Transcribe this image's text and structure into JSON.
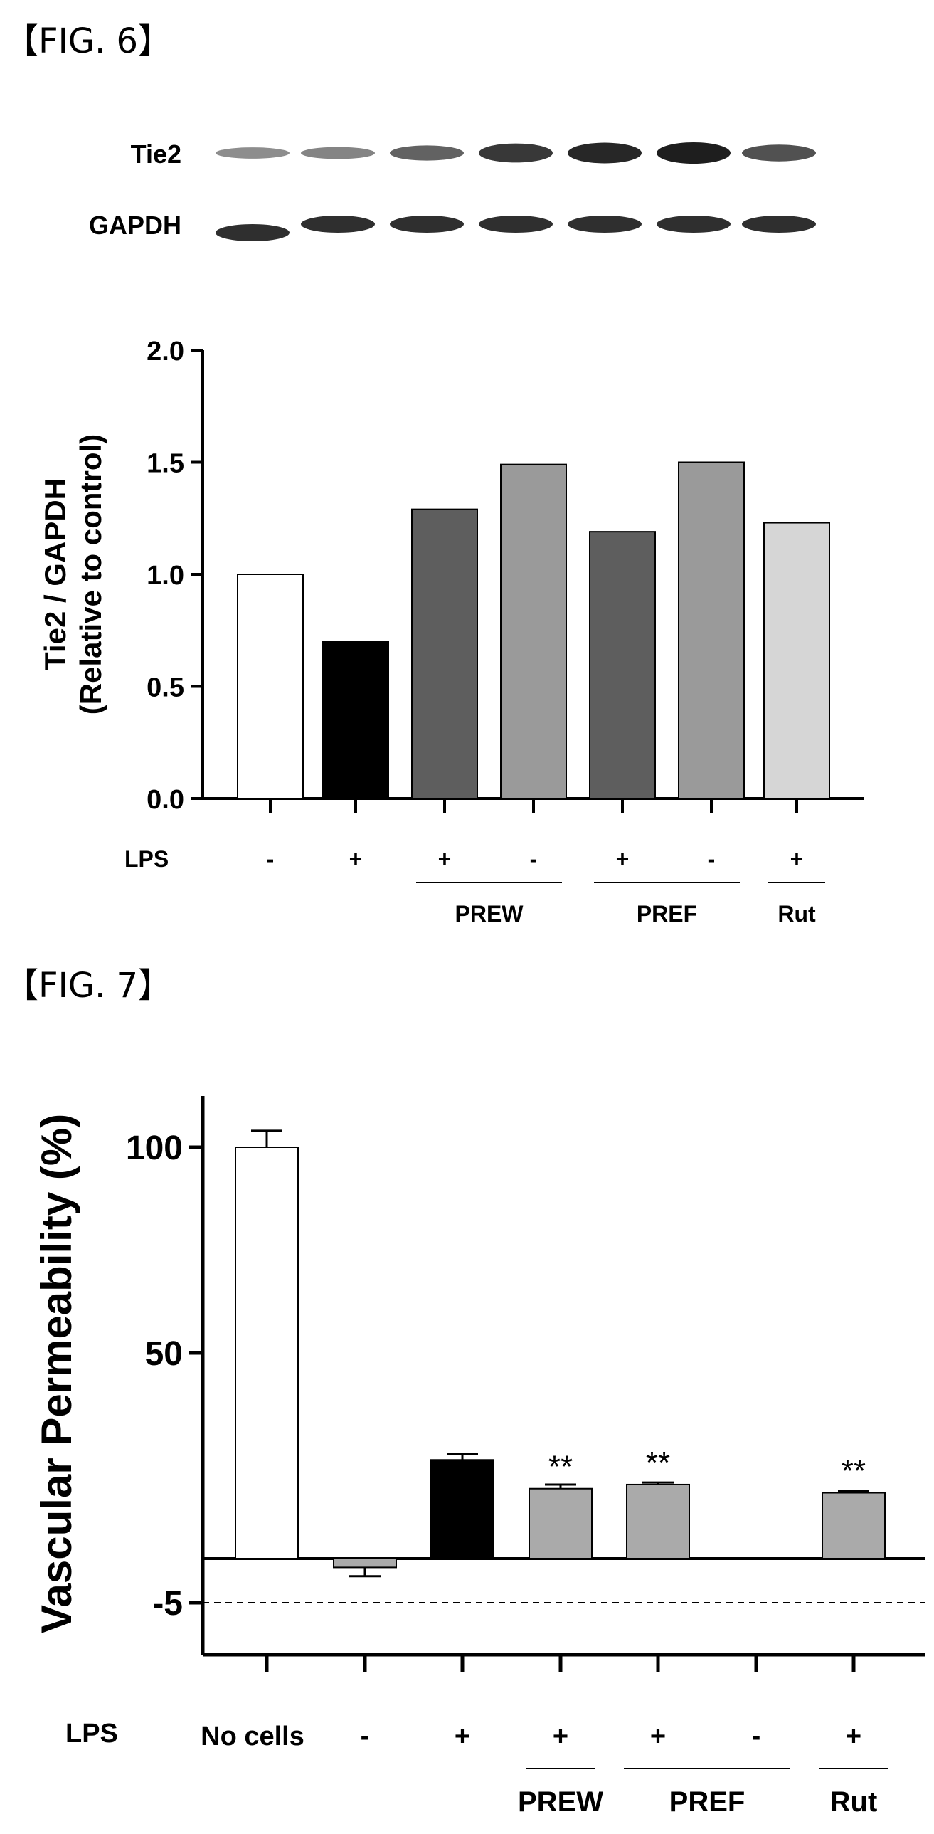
{
  "figures": [
    {
      "label": "【FIG. 6】",
      "blot": {
        "rows": [
          {
            "label": "Tie2",
            "intensity": [
              0.35,
              0.4,
              0.6,
              0.85,
              0.95,
              1.0,
              0.7
            ]
          },
          {
            "label": "GAPDH",
            "intensity": [
              0.9,
              0.9,
              0.9,
              0.9,
              0.9,
              0.9,
              0.9
            ]
          }
        ]
      },
      "chart_data": {
        "type": "bar",
        "title": "",
        "xlabel": "",
        "ylabel": [
          "Tie2 / GAPDH",
          "(Relative to control)"
        ],
        "ylim": [
          0,
          2.0
        ],
        "yticks": [
          "0.0",
          "0.5",
          "1.0",
          "1.5",
          "2.0"
        ],
        "row_label": "LPS",
        "categories": [
          "-",
          "+",
          "+",
          "-",
          "+",
          "-",
          "+"
        ],
        "values": [
          1.0,
          0.7,
          1.29,
          1.49,
          1.19,
          1.5,
          1.23
        ],
        "colors": [
          "#ffffff",
          "#000000",
          "#5e5e5e",
          "#9a9a9a",
          "#5e5e5e",
          "#9a9a9a",
          "#d6d6d6"
        ],
        "groups": [
          {
            "label": "PREW",
            "from": 2,
            "to": 3
          },
          {
            "label": "PREF",
            "from": 4,
            "to": 5
          },
          {
            "label": "Rut",
            "from": 6,
            "to": 6
          }
        ]
      }
    },
    {
      "label": "【FIG. 7】",
      "chart_data": {
        "type": "bar",
        "title": "",
        "xlabel": "",
        "ylabel": "Vascular Permeability (%)",
        "yticks": [
          "-5",
          "50",
          "100"
        ],
        "row_label": "LPS",
        "categories": [
          "No cells",
          "-",
          "+",
          "+",
          "+",
          "-",
          "+"
        ],
        "values": [
          100,
          -1,
          24,
          17,
          18,
          0,
          16
        ],
        "errors": [
          4,
          1,
          1.5,
          1,
          0.5,
          0,
          0.5
        ],
        "significance": [
          "",
          "",
          "",
          "**",
          "**",
          "",
          "**"
        ],
        "colors": [
          "#ffffff",
          "#aaaaaa",
          "#000000",
          "#aaaaaa",
          "#aaaaaa",
          "#aaaaaa",
          "#aaaaaa"
        ],
        "groups": [
          {
            "label": "PREW",
            "from": 3,
            "to": 3
          },
          {
            "label": "PREF",
            "from": 4,
            "to": 5
          },
          {
            "label": "Rut",
            "from": 6,
            "to": 6
          }
        ]
      }
    }
  ]
}
